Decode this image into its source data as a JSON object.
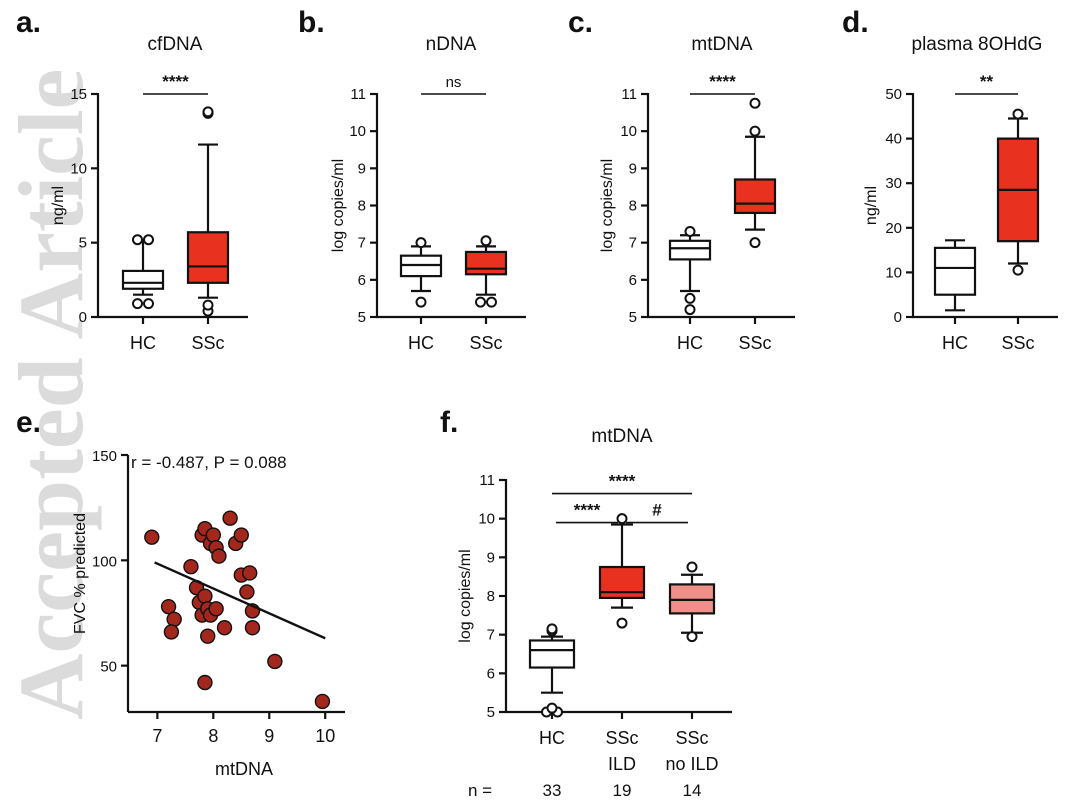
{
  "watermark": "Accepted Article",
  "chart_data": [
    {
      "id": "a",
      "letter": "a.",
      "type": "box",
      "title": "cfDNA",
      "ylabel": "ng/ml",
      "ylim": [
        0,
        15
      ],
      "yticks": [
        0,
        5,
        10,
        15
      ],
      "groups": [
        {
          "name": "HC",
          "color": "#ffffff",
          "whisker_low": 1.5,
          "q1": 1.9,
          "median": 2.3,
          "q3": 3.1,
          "whisker_high": 5.1,
          "outliers": [
            0.9,
            0.9,
            5.2,
            5.2
          ]
        },
        {
          "name": "SSc",
          "color": "#e8321f",
          "whisker_low": 1.3,
          "q1": 2.3,
          "median": 3.4,
          "q3": 5.7,
          "whisker_high": 11.6,
          "outliers": [
            0.4,
            0.8,
            13.7,
            13.8
          ]
        }
      ],
      "significance": [
        {
          "from": 0,
          "to": 1,
          "label": "****",
          "y": 15
        }
      ]
    },
    {
      "id": "b",
      "letter": "b.",
      "type": "box",
      "title": "nDNA",
      "ylabel": "log copies/ml",
      "ylim": [
        5,
        11
      ],
      "yticks": [
        5,
        6,
        7,
        8,
        9,
        10,
        11
      ],
      "groups": [
        {
          "name": "HC",
          "color": "#ffffff",
          "whisker_low": 5.7,
          "q1": 6.1,
          "median": 6.4,
          "q3": 6.65,
          "whisker_high": 6.9,
          "outliers": [
            5.4,
            7.0
          ]
        },
        {
          "name": "SSc",
          "color": "#e8321f",
          "whisker_low": 5.6,
          "q1": 6.15,
          "median": 6.3,
          "q3": 6.75,
          "whisker_high": 6.9,
          "outliers": [
            5.4,
            5.4,
            7.05
          ]
        }
      ],
      "significance": [
        {
          "from": 0,
          "to": 1,
          "label": "ns",
          "y": 11
        }
      ]
    },
    {
      "id": "c",
      "letter": "c.",
      "type": "box",
      "title": "mtDNA",
      "ylabel": "log copies/ml",
      "ylim": [
        5,
        11
      ],
      "yticks": [
        5,
        6,
        7,
        8,
        9,
        10,
        11
      ],
      "groups": [
        {
          "name": "HC",
          "color": "#ffffff",
          "whisker_low": 5.7,
          "q1": 6.55,
          "median": 6.85,
          "q3": 7.05,
          "whisker_high": 7.2,
          "outliers": [
            5.2,
            5.5,
            7.3
          ]
        },
        {
          "name": "SSc",
          "color": "#e8321f",
          "whisker_low": 7.35,
          "q1": 7.8,
          "median": 8.05,
          "q3": 8.7,
          "whisker_high": 9.85,
          "outliers": [
            7.0,
            10.0,
            10.75
          ]
        }
      ],
      "significance": [
        {
          "from": 0,
          "to": 1,
          "label": "****",
          "y": 11
        }
      ]
    },
    {
      "id": "d",
      "letter": "d.",
      "type": "box",
      "title": "plasma 8OHdG",
      "ylabel": "ng/ml",
      "ylim": [
        0,
        50
      ],
      "yticks": [
        0,
        10,
        20,
        30,
        40,
        50
      ],
      "groups": [
        {
          "name": "HC",
          "color": "#ffffff",
          "whisker_low": 1.5,
          "q1": 5,
          "median": 11,
          "q3": 15.5,
          "whisker_high": 17.2,
          "outliers": []
        },
        {
          "name": "SSc",
          "color": "#e8321f",
          "whisker_low": 12,
          "q1": 17,
          "median": 28.5,
          "q3": 40,
          "whisker_high": 44.5,
          "outliers": [
            10.5,
            45.5
          ]
        }
      ],
      "significance": [
        {
          "from": 0,
          "to": 1,
          "label": "**",
          "y": 50
        }
      ]
    },
    {
      "id": "e",
      "letter": "e.",
      "type": "scatter",
      "xlabel": "mtDNA",
      "ylabel": "FVC % predicted",
      "xlim": [
        6.6,
        10.3
      ],
      "ylim": [
        28,
        150
      ],
      "xticks": [
        7,
        8,
        9,
        10
      ],
      "yticks": [
        50,
        100,
        150
      ],
      "annotation": "r = -0.487, P = 0.088",
      "points": [
        [
          6.9,
          111
        ],
        [
          7.2,
          78
        ],
        [
          7.3,
          72
        ],
        [
          7.25,
          66
        ],
        [
          7.6,
          97
        ],
        [
          7.7,
          87
        ],
        [
          7.75,
          80
        ],
        [
          7.8,
          74
        ],
        [
          7.85,
          83
        ],
        [
          7.9,
          77
        ],
        [
          7.95,
          74
        ],
        [
          7.8,
          112
        ],
        [
          7.85,
          115
        ],
        [
          7.95,
          108
        ],
        [
          8.0,
          112
        ],
        [
          8.05,
          106
        ],
        [
          8.1,
          102
        ],
        [
          8.05,
          77
        ],
        [
          8.2,
          68
        ],
        [
          8.3,
          120
        ],
        [
          8.4,
          108
        ],
        [
          8.5,
          112
        ],
        [
          8.5,
          93
        ],
        [
          8.6,
          85
        ],
        [
          8.65,
          94
        ],
        [
          8.7,
          76
        ],
        [
          8.7,
          68
        ],
        [
          7.9,
          64
        ],
        [
          7.85,
          42
        ],
        [
          9.1,
          52
        ],
        [
          9.95,
          33
        ]
      ],
      "fit": {
        "x0": 6.95,
        "y0": 99,
        "x1": 10.0,
        "y1": 63
      }
    },
    {
      "id": "f",
      "letter": "f.",
      "type": "box",
      "title": "mtDNA",
      "ylabel": "log copies/ml",
      "ylim": [
        5,
        11
      ],
      "yticks": [
        5,
        6,
        7,
        8,
        9,
        10,
        11
      ],
      "groups": [
        {
          "name": "HC",
          "line2": "",
          "n": "33",
          "color": "#ffffff",
          "whisker_low": 5.5,
          "q1": 6.15,
          "median": 6.6,
          "q3": 6.85,
          "whisker_high": 6.95,
          "outliers": [
            5.0,
            5.0,
            5.1,
            7.1,
            7.15
          ]
        },
        {
          "name": "SSc",
          "line2": "ILD",
          "n": "19",
          "color": "#e8321f",
          "whisker_low": 7.7,
          "q1": 7.95,
          "median": 8.1,
          "q3": 8.75,
          "whisker_high": 9.85,
          "outliers": [
            7.3,
            10.0
          ]
        },
        {
          "name": "SSc",
          "line2": "no ILD",
          "n": "14",
          "color": "#f08f8a",
          "whisker_low": 7.05,
          "q1": 7.55,
          "median": 7.9,
          "q3": 8.3,
          "whisker_high": 8.55,
          "outliers": [
            6.95,
            8.75
          ]
        }
      ],
      "n_label": "n =",
      "significance": [
        {
          "from": 0,
          "to": 1,
          "label": "****",
          "y": 9.9
        },
        {
          "from": 1,
          "to": 2,
          "label": "#",
          "y": 9.9
        },
        {
          "from": 0,
          "to": 2,
          "label": "****",
          "y": 10.65
        }
      ]
    }
  ]
}
